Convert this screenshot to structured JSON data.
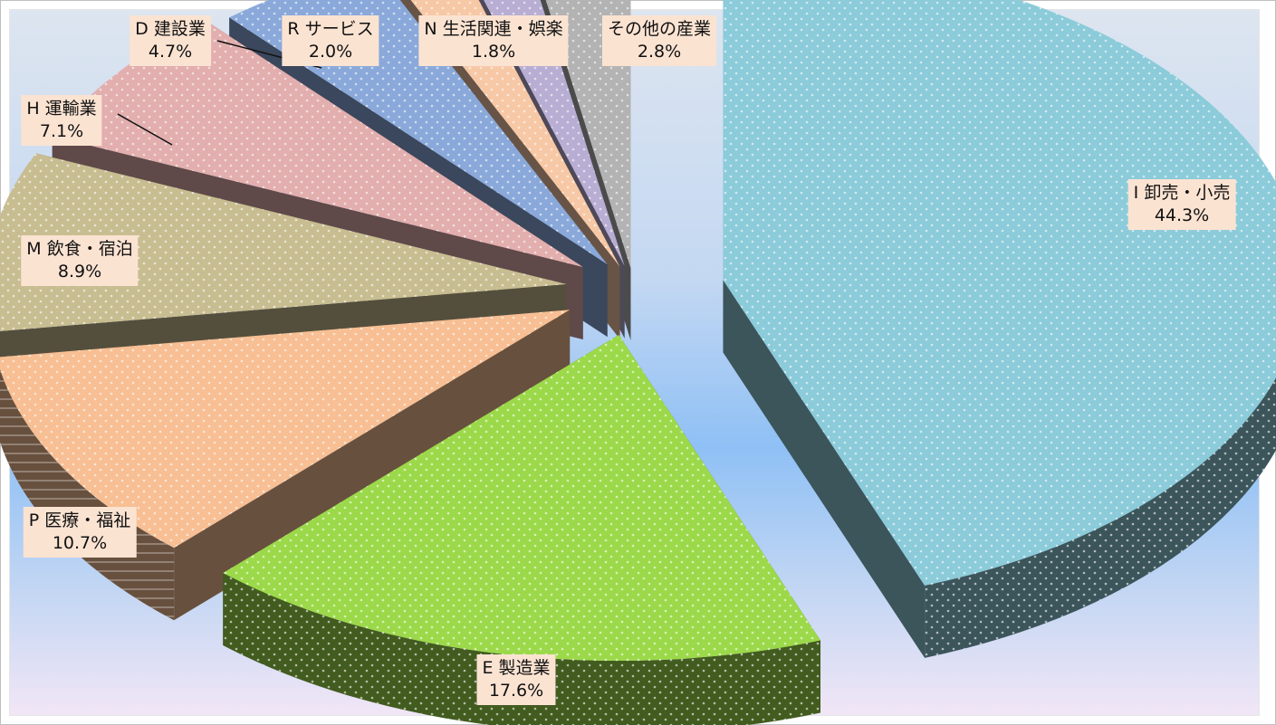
{
  "chart_data": {
    "type": "pie",
    "exploded": true,
    "three_d": true,
    "title": "",
    "slices": [
      {
        "label": "I 卸売・小売",
        "value": 44.3,
        "value_label": "44.3%",
        "color": "#8ccbd9"
      },
      {
        "label": "E 製造業",
        "value": 17.6,
        "value_label": "17.6%",
        "color": "#9cd94a"
      },
      {
        "label": "P 医療・福祉",
        "value": 10.7,
        "value_label": "10.7%",
        "color": "#f7bf93"
      },
      {
        "label": "M 飲食・宿泊",
        "value": 8.9,
        "value_label": "8.9%",
        "color": "#c8bd91"
      },
      {
        "label": "H 運輸業",
        "value": 7.1,
        "value_label": "7.1%",
        "color": "#e2aeae"
      },
      {
        "label": "D 建設業",
        "value": 4.7,
        "value_label": "4.7%",
        "color": "#8aa9da"
      },
      {
        "label": "R サービス",
        "value": 2.0,
        "value_label": "2.0%",
        "color": "#f7c8a6"
      },
      {
        "label": "N 生活関連・娯楽",
        "value": 1.8,
        "value_label": "1.8%",
        "color": "#b8aed3"
      },
      {
        "label": "その他の産業",
        "value": 2.8,
        "value_label": "2.8%",
        "color": "#b3b3b3"
      }
    ]
  }
}
